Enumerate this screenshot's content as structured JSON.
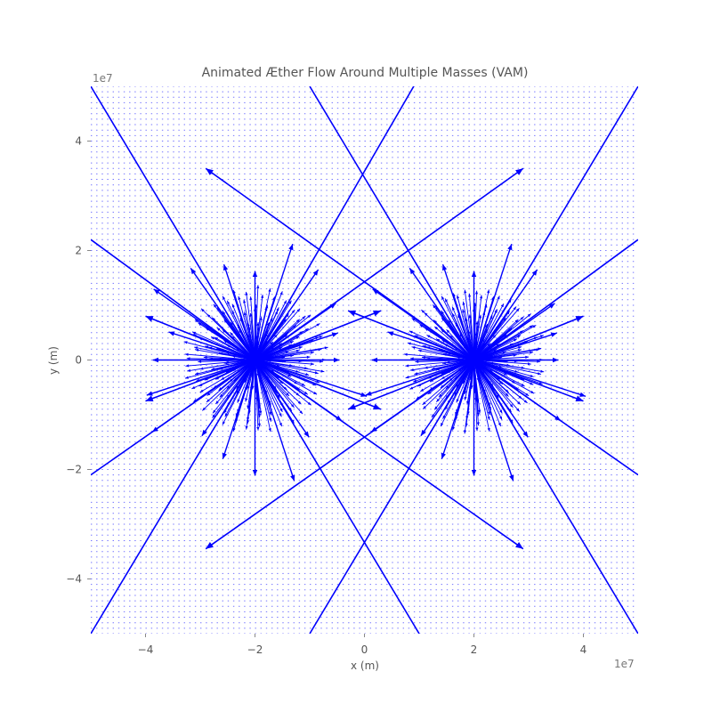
{
  "chart_data": {
    "type": "quiver",
    "title": "Animated Æther Flow Around Multiple Masses (VAM)",
    "xlabel": "x (m)",
    "ylabel": "y (m)",
    "x_offset_label": "1e7",
    "y_offset_label": "1e7",
    "xlim": [
      -5,
      5
    ],
    "ylim": [
      -5,
      5
    ],
    "xticks": [
      -4,
      -2,
      0,
      2,
      4
    ],
    "yticks": [
      -4,
      -2,
      0,
      2,
      4
    ],
    "xtick_labels": [
      "−4",
      "−2",
      "0",
      "2",
      "4"
    ],
    "ytick_labels": [
      "−4",
      "−2",
      "0",
      "2",
      "4"
    ],
    "masses": [
      {
        "x": -2,
        "y": 0
      },
      {
        "x": 2,
        "y": 0
      }
    ],
    "grid_range": [
      -5,
      5
    ],
    "grid_step": 0.1,
    "arrow_color": "#0000ff",
    "background": "#ffffff"
  }
}
